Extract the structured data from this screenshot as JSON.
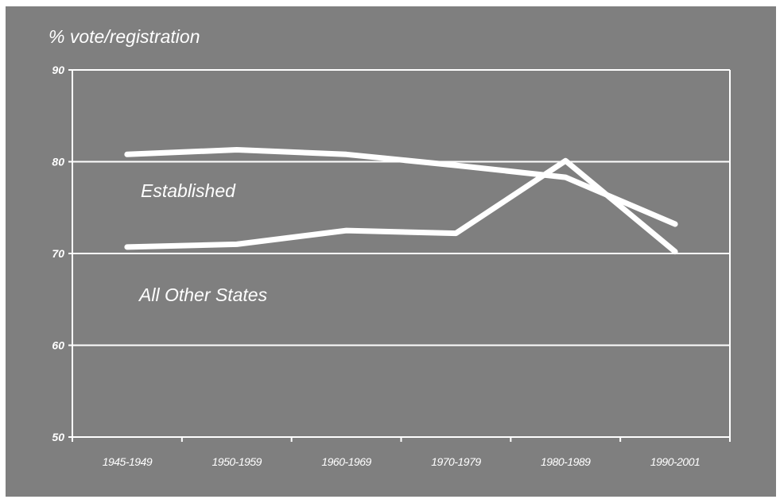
{
  "chart_data": {
    "type": "line",
    "ylabel": "% vote/registration",
    "xlabel": "",
    "categories": [
      "1945-1949",
      "1950-1959",
      "1960-1969",
      "1970-1979",
      "1980-1989",
      "1990-2001"
    ],
    "ylim": [
      50,
      90
    ],
    "yticks": [
      50,
      60,
      70,
      80,
      90
    ],
    "grid": true,
    "series": [
      {
        "name": "Established",
        "values": [
          80.8,
          81.3,
          80.8,
          79.6,
          78.3,
          73.2
        ]
      },
      {
        "name": "All Other States",
        "values": [
          70.7,
          71.0,
          72.5,
          72.2,
          80.1,
          70.2
        ]
      }
    ],
    "annotations": [
      "Established",
      "All Other States"
    ],
    "colors": {
      "background": "#7f7f7f",
      "line": "#ffffff",
      "axis": "#ffffff"
    }
  }
}
